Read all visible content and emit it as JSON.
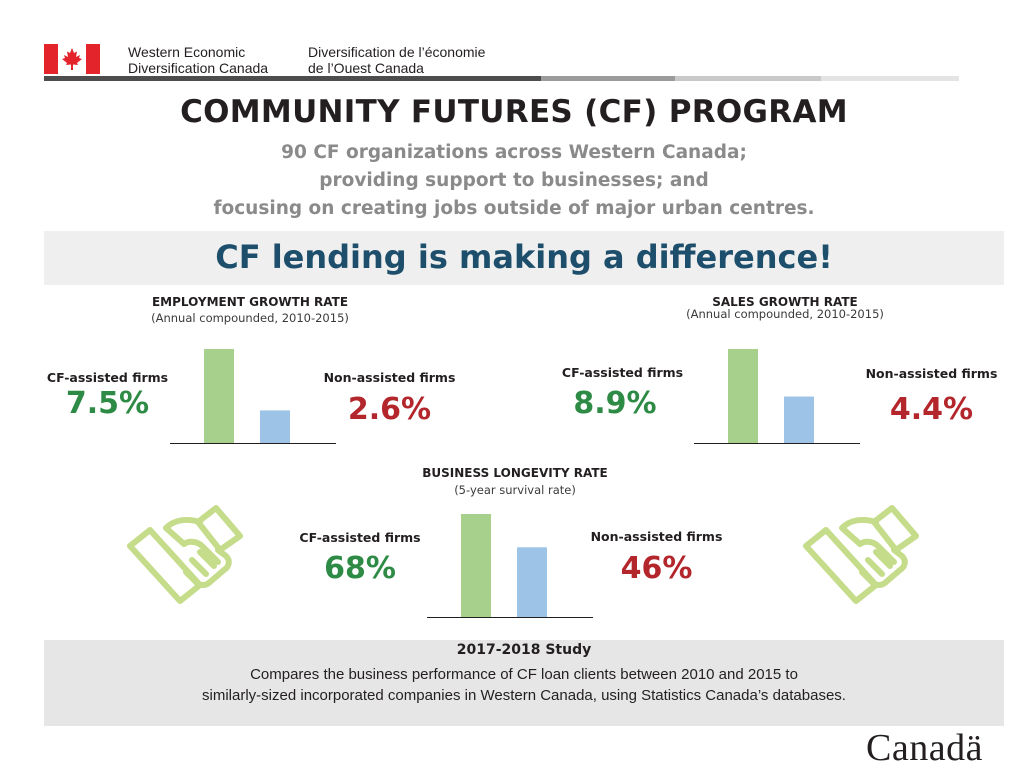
{
  "header": {
    "dept_en_line1": "Western Economic",
    "dept_en_line2": "Diversification Canada",
    "dept_fr_line1": "Diversification de l’économie",
    "dept_fr_line2": "de l’Ouest Canada"
  },
  "title": "COMMUNITY FUTURES (CF) PROGRAM",
  "subtitle_lines": [
    "90 CF organizations across Western Canada;",
    "providing support to businesses; and",
    "focusing on creating jobs outside of major urban centres."
  ],
  "banner": "CF lending is making a difference!",
  "colors": {
    "assisted_bar": "#a8d08d",
    "non_assisted_bar": "#9dc3e6",
    "assisted_text": "#2e8b45",
    "non_assisted_text": "#b3262c",
    "banner_text": "#1d4e6b",
    "flag_red": "#e3242b"
  },
  "chart_data": [
    {
      "type": "bar",
      "title": "EMPLOYMENT GROWTH  RATE",
      "subtitle": "(Annual compounded, 2010-2015)",
      "categories": [
        "CF-assisted firms",
        "Non-assisted firms"
      ],
      "values": [
        7.5,
        2.6
      ],
      "value_labels": [
        "7.5%",
        "2.6%"
      ],
      "unit": "%"
    },
    {
      "type": "bar",
      "title": "SALES GROWTH RATE",
      "subtitle": "(Annual compounded, 2010-2015)",
      "categories": [
        "CF-assisted firms",
        "Non-assisted firms"
      ],
      "values": [
        8.9,
        4.4
      ],
      "value_labels": [
        "8.9%",
        "4.4%"
      ],
      "unit": "%"
    },
    {
      "type": "bar",
      "title": "BUSINESS LONGEVITY  RATE",
      "subtitle": "(5-year survival rate)",
      "categories": [
        "CF-assisted firms",
        "Non-assisted firms"
      ],
      "values": [
        68,
        46
      ],
      "value_labels": [
        "68%",
        "46%"
      ],
      "unit": "%"
    }
  ],
  "icons": [
    "handshake-icon",
    "handshake-icon"
  ],
  "study": {
    "title": "2017-2018 Study",
    "line1": "Compares the business performance of CF loan clients between 2010 and 2015 to",
    "line2": "similarly-sized incorporated companies in Western Canada, using Statistics Canada’s databases."
  },
  "wordmark": "Canadä"
}
